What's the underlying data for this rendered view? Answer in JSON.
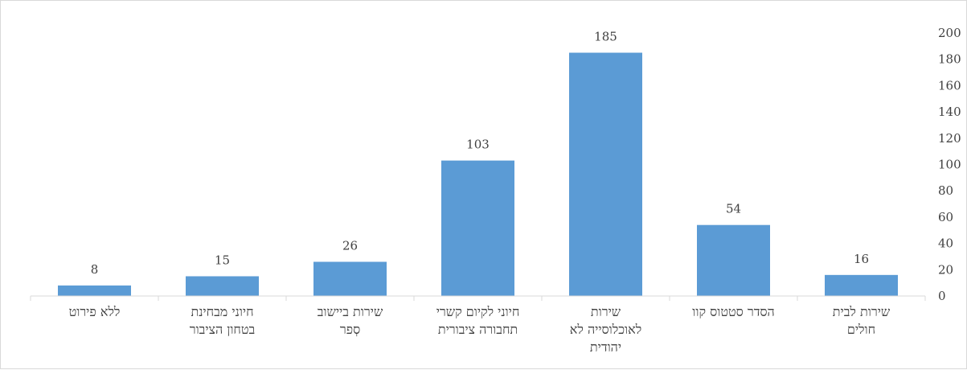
{
  "chart_data": {
    "type": "bar",
    "categories": [
      [
        "שירות לבית",
        "חולים"
      ],
      [
        "הסדר סטטוס קוו"
      ],
      [
        "שירות",
        "לאוכלוסייה לא",
        "יהודית"
      ],
      [
        "חיוני לקיום קשרי",
        "תחבורה ציבורית"
      ],
      [
        "שירות ביישוב",
        "סְפר"
      ],
      [
        "חיוני מבחינת",
        "בטחון הציבור"
      ],
      [
        "ללא פירוט"
      ]
    ],
    "values": [
      16,
      54,
      185,
      103,
      26,
      15,
      8
    ],
    "data_labels": [
      "16",
      "54",
      "185",
      "103",
      "26",
      "15",
      "8"
    ],
    "ylim": [
      0,
      200
    ],
    "yticks": [
      "0",
      "20",
      "40",
      "60",
      "80",
      "100",
      "120",
      "140",
      "160",
      "180",
      "200"
    ],
    "y_axis_position": "right",
    "category_order": "right-to-left",
    "grid": false,
    "legend": "none",
    "bar_color": "#5b9bd5",
    "axis_color": "#d9d9d9"
  }
}
